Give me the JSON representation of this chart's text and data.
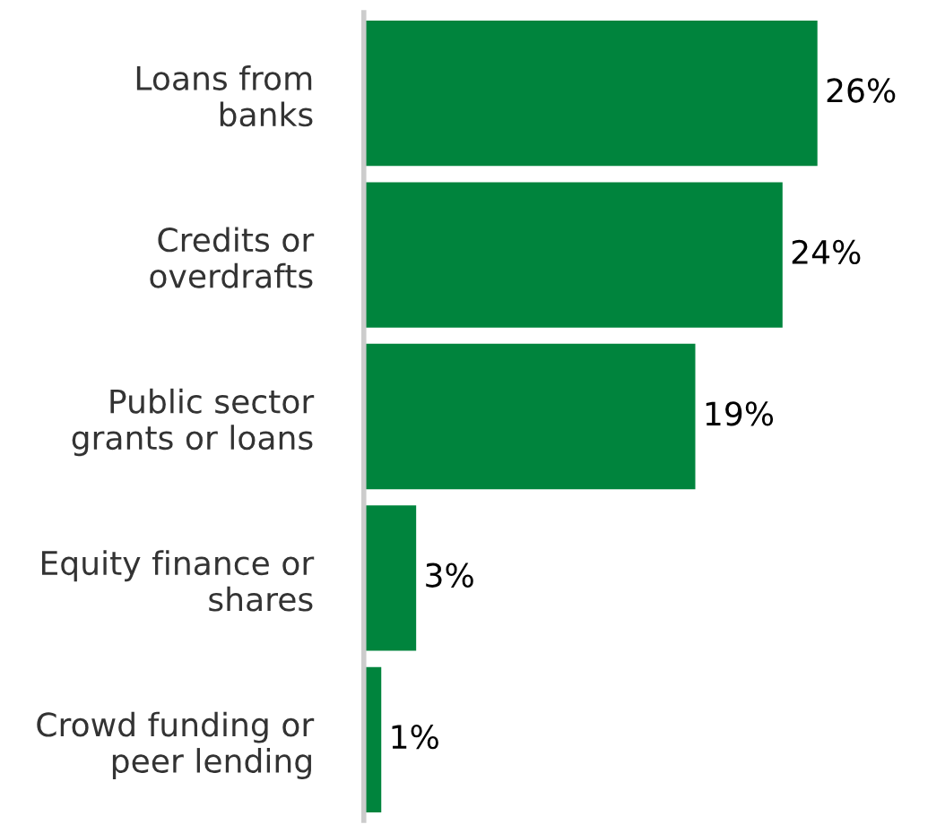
{
  "chart_data": {
    "type": "bar",
    "orientation": "horizontal",
    "categories": [
      "Loans from\nbanks",
      "Credits or\noverdrafts",
      "Public sector\ngrants or loans",
      "Equity finance or\nshares",
      "Crowd funding or\npeer lending"
    ],
    "values": [
      26,
      24,
      19,
      3,
      1
    ],
    "value_labels": [
      "26%",
      "24%",
      "19%",
      "3%",
      "1%"
    ],
    "color": "#00843d",
    "grid": false,
    "legend": false,
    "tick_labels": "y"
  }
}
